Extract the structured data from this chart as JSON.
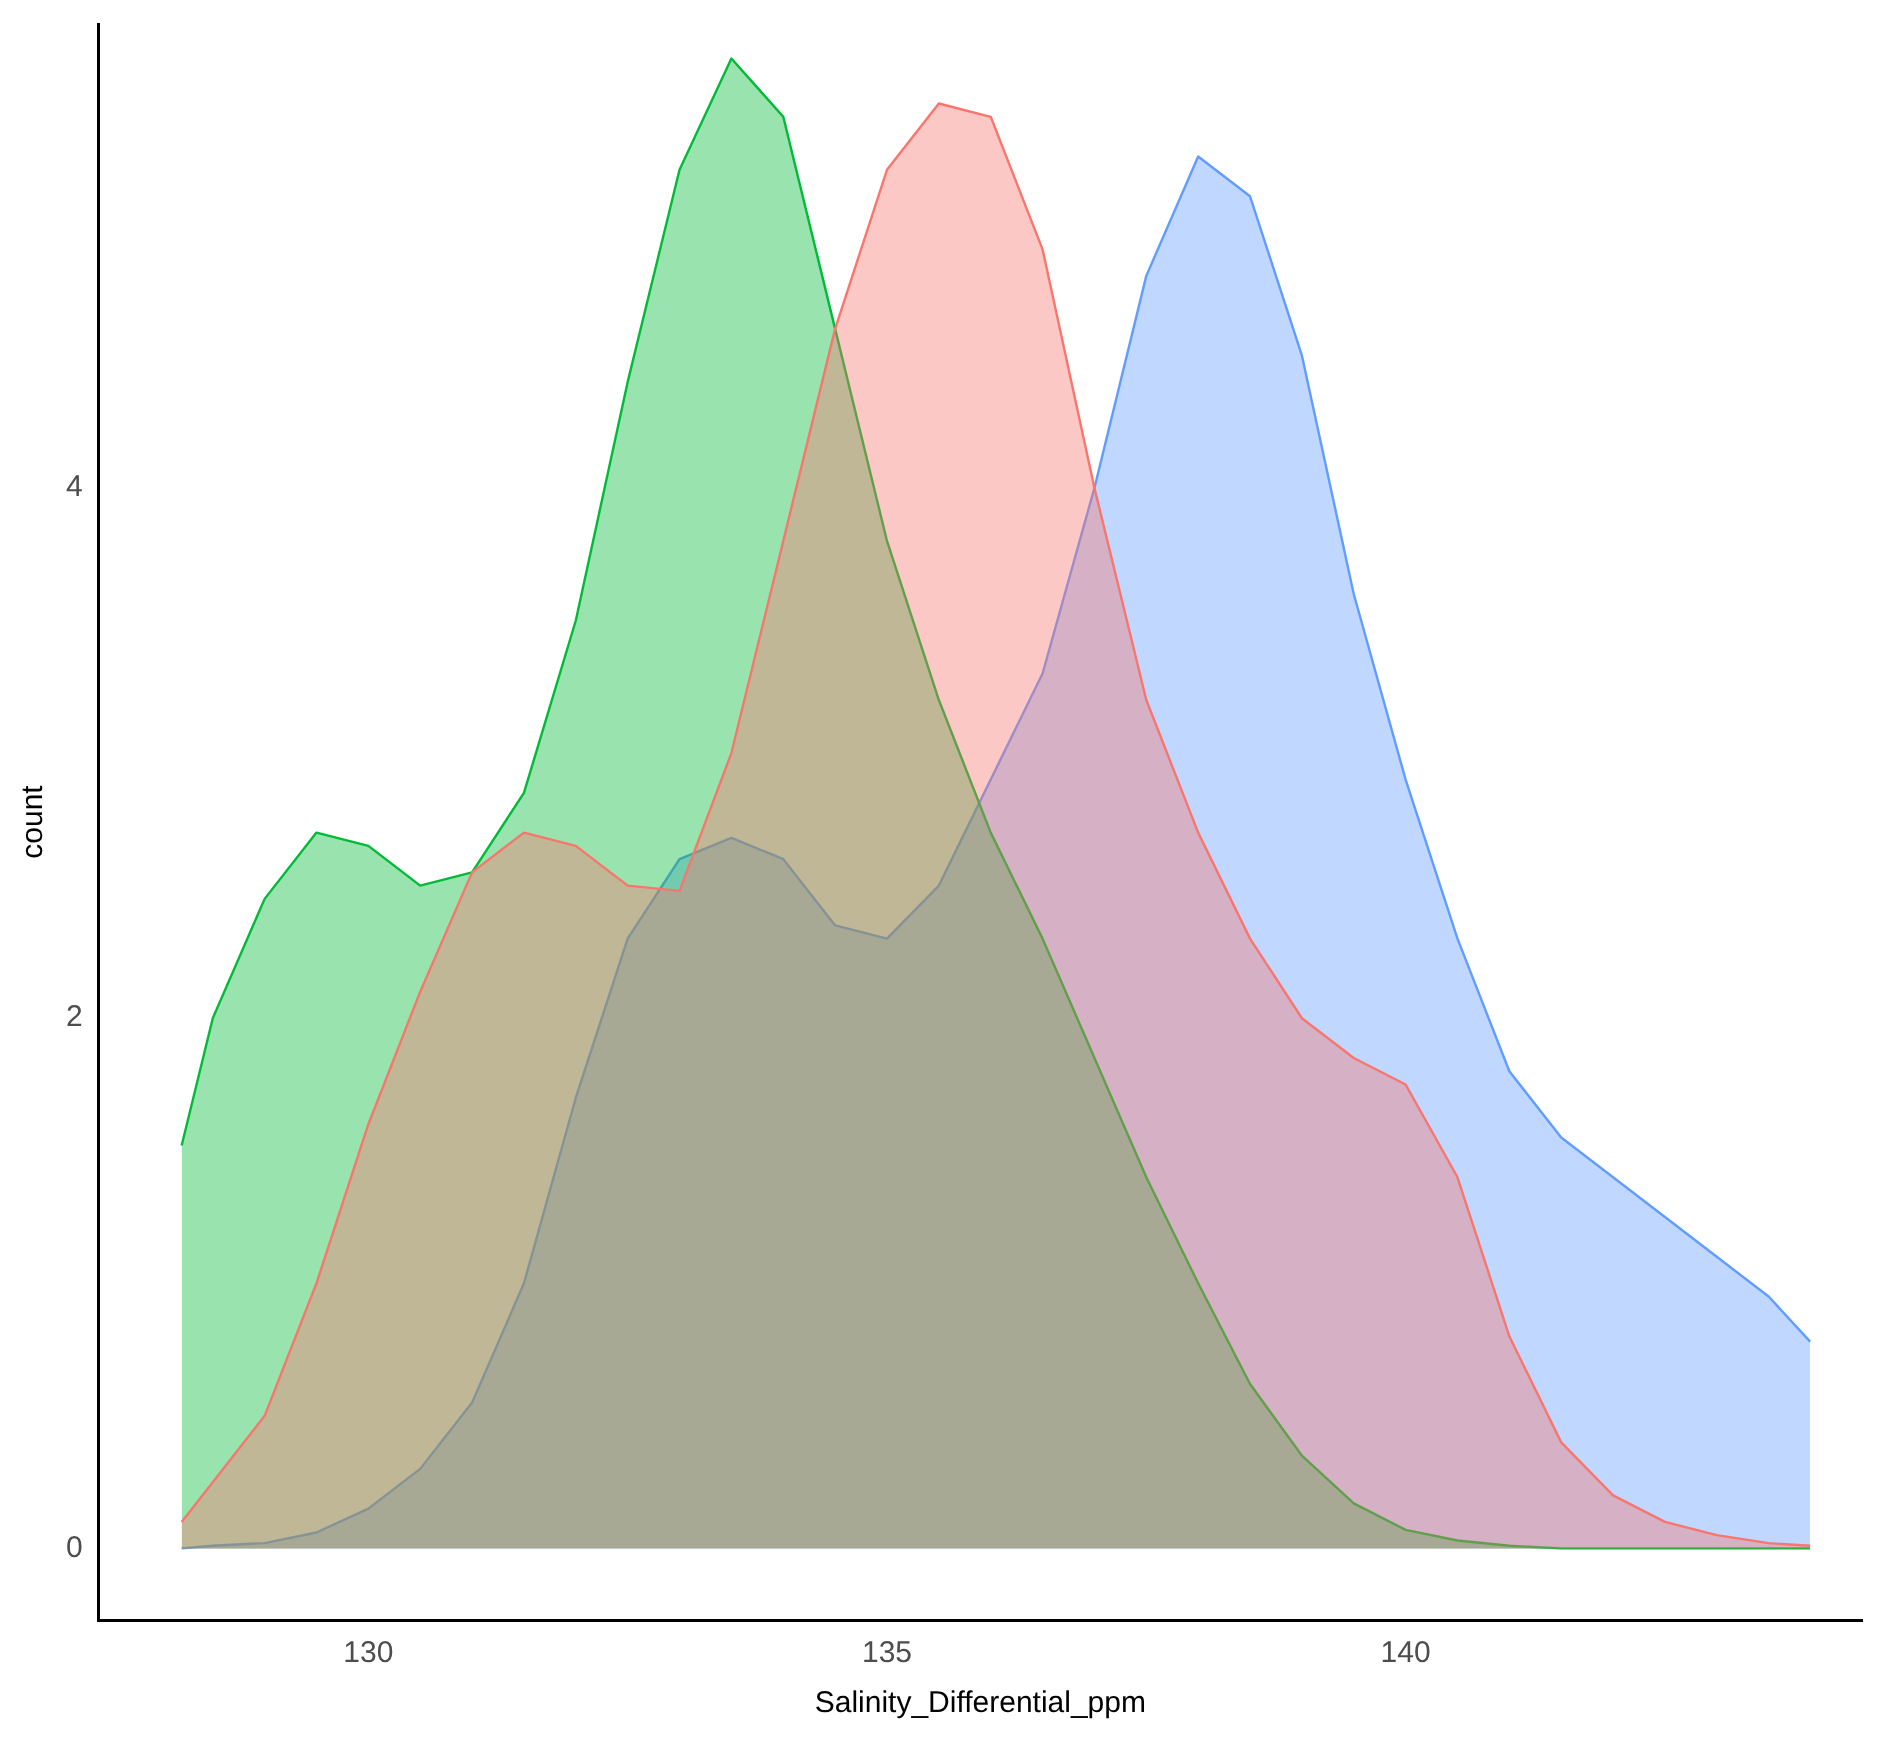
{
  "chart_data": {
    "type": "area",
    "xlabel": "Salinity_Differential_ppm",
    "ylabel": "count",
    "x": [
      128.2,
      128.5,
      129,
      129.5,
      130,
      130.5,
      131,
      131.5,
      132,
      132.5,
      133,
      133.5,
      134,
      134.5,
      135,
      135.5,
      136,
      136.5,
      137,
      137.5,
      138,
      138.5,
      139,
      139.5,
      140,
      140.5,
      141,
      141.5,
      142,
      142.5,
      143,
      143.5,
      143.9
    ],
    "series": [
      {
        "color": "#f8766d",
        "values": [
          0.1,
          0.25,
          0.5,
          1.0,
          1.6,
          2.1,
          2.55,
          2.7,
          2.65,
          2.5,
          2.48,
          3.0,
          3.8,
          4.6,
          5.2,
          5.45,
          5.4,
          4.9,
          4.0,
          3.2,
          2.7,
          2.3,
          2.0,
          1.85,
          1.75,
          1.4,
          0.8,
          0.4,
          0.2,
          0.1,
          0.05,
          0.02,
          0.01
        ]
      },
      {
        "color": "#00ba38",
        "values": [
          1.52,
          2.0,
          2.45,
          2.7,
          2.65,
          2.5,
          2.55,
          2.85,
          3.5,
          4.4,
          5.2,
          5.62,
          5.4,
          4.6,
          3.8,
          3.2,
          2.7,
          2.3,
          1.85,
          1.4,
          1.0,
          0.62,
          0.35,
          0.17,
          0.07,
          0.03,
          0.01,
          0,
          0,
          0,
          0,
          0,
          0
        ]
      },
      {
        "color": "#619cff",
        "values": [
          0,
          0.01,
          0.02,
          0.06,
          0.15,
          0.3,
          0.55,
          1.0,
          1.7,
          2.3,
          2.6,
          2.68,
          2.6,
          2.35,
          2.3,
          2.5,
          2.9,
          3.3,
          4.0,
          4.8,
          5.25,
          5.1,
          4.5,
          3.6,
          2.9,
          2.3,
          1.8,
          1.55,
          1.4,
          1.25,
          1.1,
          0.95,
          0.78
        ]
      }
    ],
    "xlim": [
      127.4,
      144.4
    ],
    "ylim": [
      -0.27,
      5.75
    ],
    "xticks": [
      130,
      135,
      140
    ],
    "yticks": [
      0,
      2,
      4
    ]
  }
}
